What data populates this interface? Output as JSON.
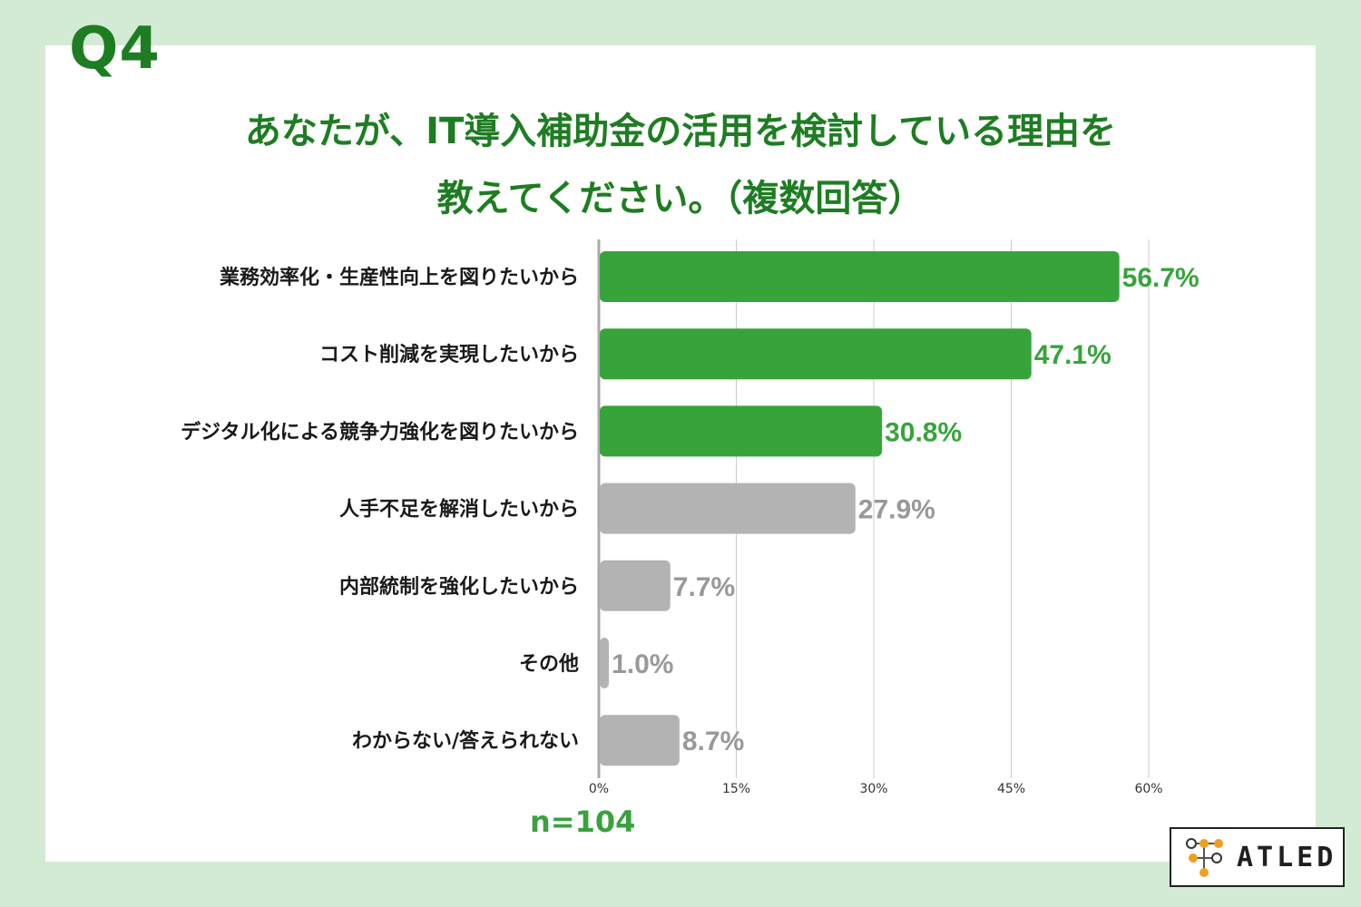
{
  "header": {
    "question_no": "Q4",
    "title_line1": "あなたが、IT導入補助金の活用を検討している理由を",
    "title_line2": "教えてください。（複数回答）"
  },
  "chart_data": {
    "type": "bar",
    "orientation": "horizontal",
    "categories": [
      "業務効率化・生産性向上を図りたいから",
      "コスト削減を実現したいから",
      "デジタル化による競争力強化を図りたいから",
      "人手不足を解消したいから",
      "内部統制を強化したいから",
      "その他",
      "わからない/答えられない"
    ],
    "values": [
      56.7,
      47.1,
      30.8,
      27.9,
      7.7,
      1.0,
      8.7
    ],
    "value_labels": [
      "56.7%",
      "47.1%",
      "30.8%",
      "27.9%",
      "7.7%",
      "1.0%",
      "8.7%"
    ],
    "highlight": [
      true,
      true,
      true,
      false,
      false,
      false,
      false
    ],
    "xlim": [
      0,
      60
    ],
    "xticks": [
      0,
      15,
      30,
      45,
      60
    ],
    "xtick_labels": [
      "0%",
      "15%",
      "30%",
      "45%",
      "60%"
    ],
    "grid": true,
    "colors": {
      "highlight": "#37a43b",
      "muted": "#b3b3b3",
      "muted_label": "#999999",
      "grid": "#cccccc"
    }
  },
  "sample_size": "n=104",
  "logo": {
    "text": "ATLED",
    "accent": "#f0a020"
  }
}
